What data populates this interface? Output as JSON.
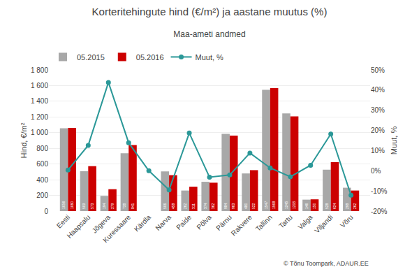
{
  "chart_data": {
    "type": "bar",
    "title": "Korteritehingute hind (€/m²) ja aastane muutus (%)",
    "subtitle": "Maa-ameti andmed",
    "ylabel": "Hind, €/m²",
    "y2label": "Muut, %",
    "categories": [
      "Eesti",
      "Haapsalu",
      "Jõgeva",
      "Kuressaare",
      "Kärdla",
      "Narva",
      "Paide",
      "Põlva",
      "Pärnu",
      "Rakvere",
      "Tallinn",
      "Tartu",
      "Valga",
      "Viljandi",
      "Võru"
    ],
    "series": [
      {
        "name": "05.2015",
        "color": "#a8a8a8",
        "data_labels": true,
        "values": [
          1056,
          509,
          194,
          738,
          null,
          506,
          262,
          374,
          984,
          480,
          1547,
          1245,
          146,
          528,
          298
        ]
      },
      {
        "name": "05.2016",
        "color": "#cc0000",
        "data_labels": true,
        "values": [
          1060,
          573,
          279,
          841,
          null,
          458,
          311,
          362,
          963,
          522,
          1568,
          1208,
          150,
          624,
          262
        ]
      },
      {
        "name": "Muut, %",
        "type": "line",
        "marker": "circle",
        "color": "#2b9898",
        "axis": "y2",
        "values": [
          0.4,
          12.6,
          43.8,
          13.9,
          0.0,
          -9.5,
          18.7,
          -3.2,
          -2.1,
          8.8,
          1.4,
          -3.0,
          2.7,
          18.2,
          -12.1
        ]
      }
    ],
    "ylim": [
      0,
      1800
    ],
    "yticks": [
      0,
      200,
      400,
      600,
      800,
      {
        "value": 1000,
        "label": "1 000"
      },
      {
        "value": 1200,
        "label": "1 200"
      },
      {
        "value": 1400,
        "label": "1 400"
      },
      {
        "value": 1600,
        "label": "1 600"
      },
      {
        "value": 1800,
        "label": "1 800"
      }
    ],
    "y2lim": [
      -20,
      50
    ],
    "y2ticks": [
      {
        "value": -20,
        "label": "-20%"
      },
      {
        "value": -10,
        "label": "-10%"
      },
      {
        "value": 0,
        "label": "0%"
      },
      {
        "value": 10,
        "label": "10%"
      },
      {
        "value": 20,
        "label": "20%"
      },
      {
        "value": 30,
        "label": "30%"
      },
      {
        "value": 40,
        "label": "40%"
      },
      {
        "value": 50,
        "label": "50%"
      }
    ],
    "grid": true,
    "legend": "upper left",
    "annotations": [
      "© Tõnu Toompark, ADAUR.EE"
    ]
  }
}
